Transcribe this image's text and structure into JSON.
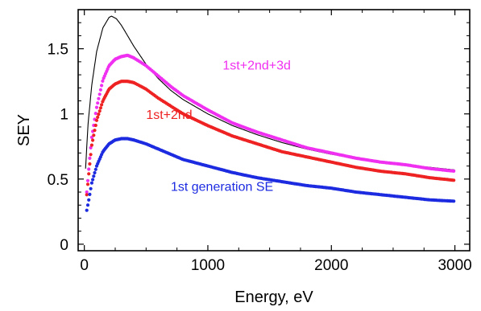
{
  "chart_data": {
    "type": "scatter",
    "xlabel": "Energy, eV",
    "ylabel": "SEY",
    "xlim": [
      -50,
      3120
    ],
    "ylim": [
      -0.05,
      1.8
    ],
    "grid": false,
    "x_ticks": [
      0,
      1000,
      2000,
      3000
    ],
    "x_tick_labels": [
      "0",
      "1000",
      "2000",
      "3000"
    ],
    "y_ticks": [
      0,
      0.5,
      1,
      1.5
    ],
    "y_tick_labels": [
      "0",
      "0.5",
      "1",
      "1.5"
    ],
    "annotations": [
      {
        "text": "1st+2nd+3d",
        "series": "magenta",
        "x": 1120,
        "y": 1.34
      },
      {
        "text": "1st+2nd",
        "series": "red",
        "x": 500,
        "y": 0.96
      },
      {
        "text": "1st generation SE",
        "series": "blue",
        "x": 700,
        "y": 0.41
      }
    ],
    "series": [
      {
        "kind": "line",
        "color": "#000000",
        "points": [
          [
            10,
            0.58
          ],
          [
            30,
            0.92
          ],
          [
            60,
            1.22
          ],
          [
            100,
            1.48
          ],
          [
            150,
            1.66
          ],
          [
            200,
            1.74
          ],
          [
            220,
            1.75
          ],
          [
            260,
            1.73
          ],
          [
            300,
            1.68
          ],
          [
            400,
            1.52
          ],
          [
            500,
            1.38
          ],
          [
            600,
            1.27
          ],
          [
            700,
            1.18
          ],
          [
            800,
            1.11
          ],
          [
            1000,
            1.0
          ],
          [
            1200,
            0.91
          ],
          [
            1400,
            0.84
          ],
          [
            1600,
            0.78
          ],
          [
            1800,
            0.73
          ],
          [
            2000,
            0.69
          ],
          [
            2200,
            0.66
          ],
          [
            2400,
            0.63
          ],
          [
            2600,
            0.61
          ],
          [
            2800,
            0.59
          ],
          [
            3000,
            0.57
          ]
        ]
      },
      {
        "kind": "dots",
        "color": "#f030f0",
        "points": [
          [
            20,
            0.4
          ],
          [
            40,
            0.62
          ],
          [
            60,
            0.82
          ],
          [
            100,
            1.05
          ],
          [
            150,
            1.26
          ],
          [
            200,
            1.37
          ],
          [
            250,
            1.42
          ],
          [
            300,
            1.44
          ],
          [
            350,
            1.45
          ],
          [
            400,
            1.43
          ],
          [
            500,
            1.37
          ],
          [
            600,
            1.29
          ],
          [
            700,
            1.21
          ],
          [
            800,
            1.14
          ],
          [
            1000,
            1.03
          ],
          [
            1200,
            0.93
          ],
          [
            1400,
            0.86
          ],
          [
            1600,
            0.8
          ],
          [
            1800,
            0.74
          ],
          [
            2000,
            0.7
          ],
          [
            2200,
            0.66
          ],
          [
            2400,
            0.63
          ],
          [
            2600,
            0.61
          ],
          [
            2800,
            0.58
          ],
          [
            3000,
            0.56
          ]
        ]
      },
      {
        "kind": "dots",
        "color": "#ee2222",
        "points": [
          [
            20,
            0.38
          ],
          [
            40,
            0.58
          ],
          [
            60,
            0.76
          ],
          [
            100,
            0.95
          ],
          [
            150,
            1.1
          ],
          [
            200,
            1.19
          ],
          [
            250,
            1.23
          ],
          [
            300,
            1.25
          ],
          [
            350,
            1.25
          ],
          [
            400,
            1.24
          ],
          [
            500,
            1.19
          ],
          [
            600,
            1.12
          ],
          [
            700,
            1.06
          ],
          [
            800,
            1.0
          ],
          [
            1000,
            0.91
          ],
          [
            1200,
            0.83
          ],
          [
            1400,
            0.77
          ],
          [
            1600,
            0.71
          ],
          [
            1800,
            0.67
          ],
          [
            2000,
            0.63
          ],
          [
            2200,
            0.59
          ],
          [
            2400,
            0.56
          ],
          [
            2600,
            0.54
          ],
          [
            2800,
            0.51
          ],
          [
            3000,
            0.49
          ]
        ]
      },
      {
        "kind": "dots",
        "color": "#1c2be0",
        "points": [
          [
            20,
            0.26
          ],
          [
            40,
            0.36
          ],
          [
            60,
            0.47
          ],
          [
            100,
            0.6
          ],
          [
            150,
            0.71
          ],
          [
            200,
            0.77
          ],
          [
            250,
            0.8
          ],
          [
            300,
            0.81
          ],
          [
            350,
            0.81
          ],
          [
            400,
            0.8
          ],
          [
            500,
            0.77
          ],
          [
            600,
            0.73
          ],
          [
            700,
            0.69
          ],
          [
            800,
            0.65
          ],
          [
            1000,
            0.6
          ],
          [
            1200,
            0.55
          ],
          [
            1400,
            0.51
          ],
          [
            1600,
            0.48
          ],
          [
            1800,
            0.45
          ],
          [
            2000,
            0.43
          ],
          [
            2200,
            0.4
          ],
          [
            2400,
            0.38
          ],
          [
            2600,
            0.36
          ],
          [
            2800,
            0.34
          ],
          [
            3000,
            0.33
          ]
        ]
      }
    ]
  }
}
